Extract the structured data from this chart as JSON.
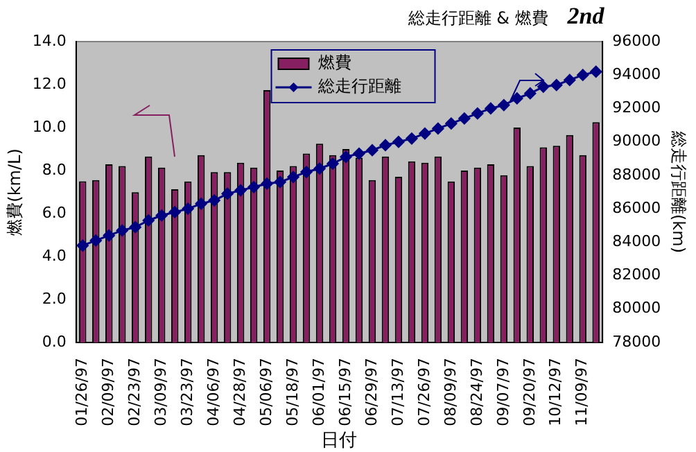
{
  "chart_data": {
    "type": "bar",
    "title": "総走行距離 & 燃費",
    "subtitle": "2nd",
    "xlabel": "日付",
    "ylabel": "燃費(km/L)",
    "y2label": "総走行距離(km)",
    "categories": [
      "01/26/97",
      null,
      "02/09/97",
      null,
      "02/23/97",
      null,
      "03/09/97",
      null,
      "03/23/97",
      null,
      "04/06/97",
      null,
      "04/28/97",
      null,
      "05/06/97",
      null,
      "05/18/97",
      null,
      "06/01/97",
      null,
      "06/15/97",
      null,
      "06/29/97",
      null,
      "07/13/97",
      null,
      "07/26/97",
      null,
      "08/09/97",
      null,
      "08/24/97",
      null,
      "09/07/97",
      null,
      "09/20/97",
      null,
      "10/12/97",
      null,
      "11/09/97",
      null
    ],
    "series": [
      {
        "name": "燃費",
        "color": "#862060",
        "values": [
          7.5,
          7.56,
          8.29,
          8.21,
          6.99,
          8.65,
          8.14,
          7.13,
          7.49,
          8.72,
          7.93,
          7.93,
          8.36,
          8.14,
          11.74,
          8.0,
          8.21,
          8.79,
          9.25,
          8.72,
          9.0,
          8.6,
          7.56,
          8.65,
          7.71,
          8.43,
          8.36,
          8.65,
          7.49,
          8.0,
          8.14,
          8.29,
          7.78,
          10.0,
          8.21,
          9.08,
          9.15,
          9.65,
          8.72,
          10.25
        ]
      },
      {
        "name": "総走行距離",
        "type": "line",
        "axis": "y2",
        "color": "#000080",
        "marker": "diamond",
        "values": [
          83800,
          84100,
          84400,
          84700,
          84900,
          85300,
          85600,
          85800,
          86000,
          86300,
          86500,
          86900,
          87100,
          87300,
          87500,
          87600,
          87900,
          88200,
          88400,
          88700,
          89100,
          89300,
          89500,
          89800,
          90000,
          90200,
          90500,
          90800,
          91100,
          91400,
          91700,
          92000,
          92200,
          92600,
          92900,
          93300,
          93400,
          93700,
          94000,
          94200
        ]
      }
    ],
    "ylim": [
      0,
      14
    ],
    "yticks": [
      {
        "value": 0,
        "label": "0.0"
      },
      {
        "value": 2,
        "label": "2.0"
      },
      {
        "value": 4,
        "label": "4.0"
      },
      {
        "value": 6,
        "label": "6.0"
      },
      {
        "value": 8,
        "label": "8.0"
      },
      {
        "value": 10,
        "label": "10.0"
      },
      {
        "value": 12,
        "label": "12.0"
      },
      {
        "value": 14,
        "label": "14.0"
      }
    ],
    "y2lim": [
      78000,
      96000
    ],
    "y2ticks": [
      78000,
      80000,
      82000,
      84000,
      86000,
      88000,
      90000,
      92000,
      94000,
      96000
    ],
    "grid": false,
    "legend": "top"
  }
}
